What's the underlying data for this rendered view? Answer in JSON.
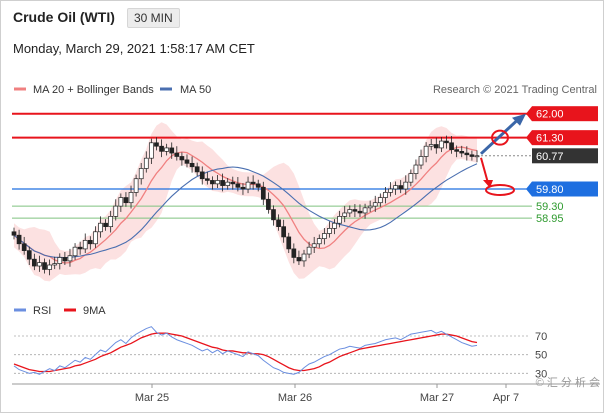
{
  "header": {
    "title": "Crude Oil (WTI)",
    "timeframe": "30 MIN",
    "datetime": "Monday, March 29, 2021 1:58:17 AM CET"
  },
  "legend": {
    "ma20_bb": "MA 20 + Bollinger Bands",
    "ma50": "MA 50",
    "rsi": "RSI",
    "rsi_ma": "9MA"
  },
  "credit": "Research © 2021 Trading Central",
  "watermark": "© 汇 分 析 会",
  "colors": {
    "resistance": "#e8141c",
    "support_blue": "#1e6fe0",
    "support_green": "#2e9a2e",
    "current": "#333333",
    "ma20": "#f08080",
    "ma50": "#4a6fb0",
    "band": "#fbd7d7",
    "rsi": "#6b8fe0",
    "rsi_ma": "#e8141c"
  },
  "chart_data": [
    {
      "type": "candlestick",
      "x_ticks": [
        "Mar 25",
        "Mar 26",
        "Mar 27",
        "Apr 7"
      ],
      "ylim": [
        57.2,
        62.4
      ],
      "levels": [
        {
          "label": "62.00",
          "value": 62.0,
          "kind": "resistance"
        },
        {
          "label": "61.30",
          "value": 61.3,
          "kind": "resistance"
        },
        {
          "label": "60.77",
          "value": 60.77,
          "kind": "current"
        },
        {
          "label": "59.80",
          "value": 59.8,
          "kind": "pivot"
        },
        {
          "label": "59.30",
          "value": 59.3,
          "kind": "support"
        },
        {
          "label": "58.95",
          "value": 58.95,
          "kind": "support"
        }
      ],
      "close_series": [
        58.45,
        58.2,
        58.0,
        57.75,
        57.55,
        57.65,
        57.45,
        57.58,
        57.62,
        57.8,
        57.7,
        57.85,
        58.1,
        58.05,
        58.3,
        58.2,
        58.55,
        58.8,
        58.7,
        59.0,
        59.3,
        59.55,
        59.4,
        59.7,
        60.1,
        60.4,
        60.7,
        61.15,
        61.05,
        60.9,
        61.0,
        60.85,
        60.75,
        60.65,
        60.55,
        60.45,
        60.3,
        60.1,
        60.05,
        59.95,
        60.05,
        59.9,
        60.0,
        59.95,
        59.85,
        59.8,
        60.0,
        59.95,
        59.85,
        59.5,
        59.2,
        58.9,
        58.7,
        58.4,
        58.05,
        57.8,
        57.7,
        57.9,
        58.1,
        58.2,
        58.35,
        58.5,
        58.65,
        58.8,
        59.0,
        59.1,
        59.2,
        59.15,
        59.1,
        59.25,
        59.3,
        59.4,
        59.55,
        59.7,
        59.8,
        59.9,
        59.8,
        60.0,
        60.25,
        60.5,
        60.75,
        61.05,
        61.1,
        61.0,
        61.2,
        61.15,
        60.95,
        60.9,
        60.85,
        60.8,
        60.75,
        60.77
      ],
      "arrows": [
        {
          "from": 60.77,
          "to": 62.0,
          "color": "blue"
        },
        {
          "from": 60.77,
          "to": 59.8,
          "color": "red"
        }
      ]
    },
    {
      "type": "line",
      "name": "RSI",
      "y_ticks": [
        30,
        50,
        70
      ],
      "ylim": [
        25,
        85
      ],
      "rsi_series": [
        38,
        34,
        32,
        30,
        31,
        29,
        32,
        35,
        33,
        38,
        36,
        40,
        44,
        42,
        47,
        45,
        50,
        55,
        53,
        58,
        63,
        66,
        62,
        68,
        72,
        75,
        78,
        80,
        74,
        71,
        73,
        69,
        66,
        64,
        62,
        60,
        57,
        54,
        56,
        52,
        55,
        51,
        54,
        52,
        50,
        48,
        53,
        51,
        49,
        44,
        40,
        36,
        34,
        31,
        30,
        29,
        31,
        36,
        40,
        42,
        45,
        48,
        50,
        53,
        56,
        57,
        59,
        58,
        57,
        60,
        61,
        62,
        64,
        66,
        67,
        68,
        66,
        69,
        72,
        73,
        74,
        75,
        76,
        73,
        75,
        72,
        69,
        66,
        63,
        61,
        59,
        60
      ],
      "rsi_ma_series": [
        40,
        38,
        36,
        34,
        33,
        32,
        32,
        32,
        33,
        34,
        35,
        36,
        38,
        39,
        41,
        43,
        45,
        48,
        50,
        52,
        55,
        58,
        60,
        62,
        65,
        68,
        70,
        72,
        73,
        73,
        73,
        72,
        71,
        70,
        68,
        66,
        64,
        62,
        60,
        58,
        57,
        55,
        54,
        54,
        53,
        52,
        52,
        51,
        51,
        50,
        48,
        45,
        42,
        39,
        36,
        34,
        33,
        33,
        34,
        35,
        37,
        40,
        42,
        45,
        48,
        50,
        52,
        54,
        56,
        57,
        58,
        59,
        60,
        61,
        62,
        63,
        64,
        65,
        66,
        67,
        68,
        69,
        70,
        71,
        72,
        72,
        71,
        70,
        68,
        66,
        64,
        63
      ]
    }
  ]
}
